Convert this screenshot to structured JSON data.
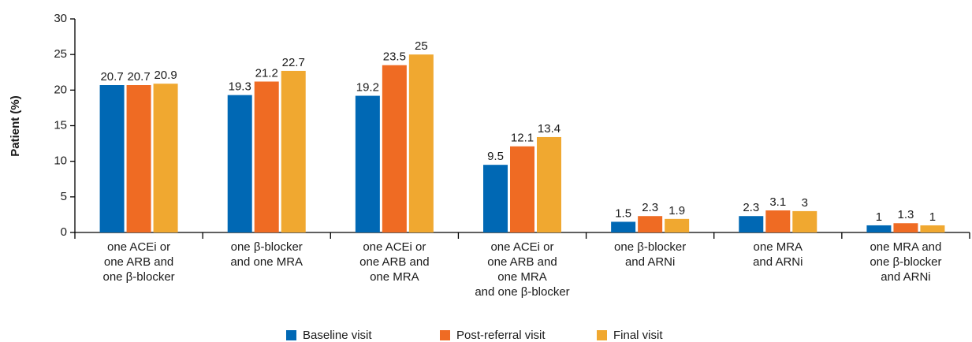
{
  "chart_data": {
    "type": "bar",
    "ylabel": "Patient (%)",
    "categories": [
      [
        "one ACEi or",
        "one ARB and",
        "one β-blocker"
      ],
      [
        "one β-blocker",
        "and one MRA"
      ],
      [
        "one ACEi or",
        "one ARB and",
        "one MRA"
      ],
      [
        "one ACEi or",
        "one ARB and",
        "one MRA",
        "and one β-blocker"
      ],
      [
        "one β-blocker",
        "and ARNi"
      ],
      [
        "one MRA",
        "and ARNi"
      ],
      [
        "one MRA and",
        "one β-blocker",
        "and ARNi"
      ]
    ],
    "series": [
      {
        "name": "Baseline visit",
        "color": "#0068b4",
        "values": [
          20.7,
          19.3,
          19.2,
          9.5,
          1.5,
          2.3,
          1
        ]
      },
      {
        "name": "Post-referral visit",
        "color": "#ef6b23",
        "values": [
          20.7,
          21.2,
          23.5,
          12.1,
          2.3,
          3.1,
          1.3
        ]
      },
      {
        "name": "Final visit",
        "color": "#f0a830",
        "values": [
          20.9,
          22.7,
          25,
          13.4,
          1.9,
          3,
          1
        ]
      }
    ],
    "ylim": [
      0,
      30
    ],
    "yticks": [
      0,
      5,
      10,
      15,
      20,
      25,
      30
    ],
    "grid": false,
    "legend": "bottom"
  }
}
